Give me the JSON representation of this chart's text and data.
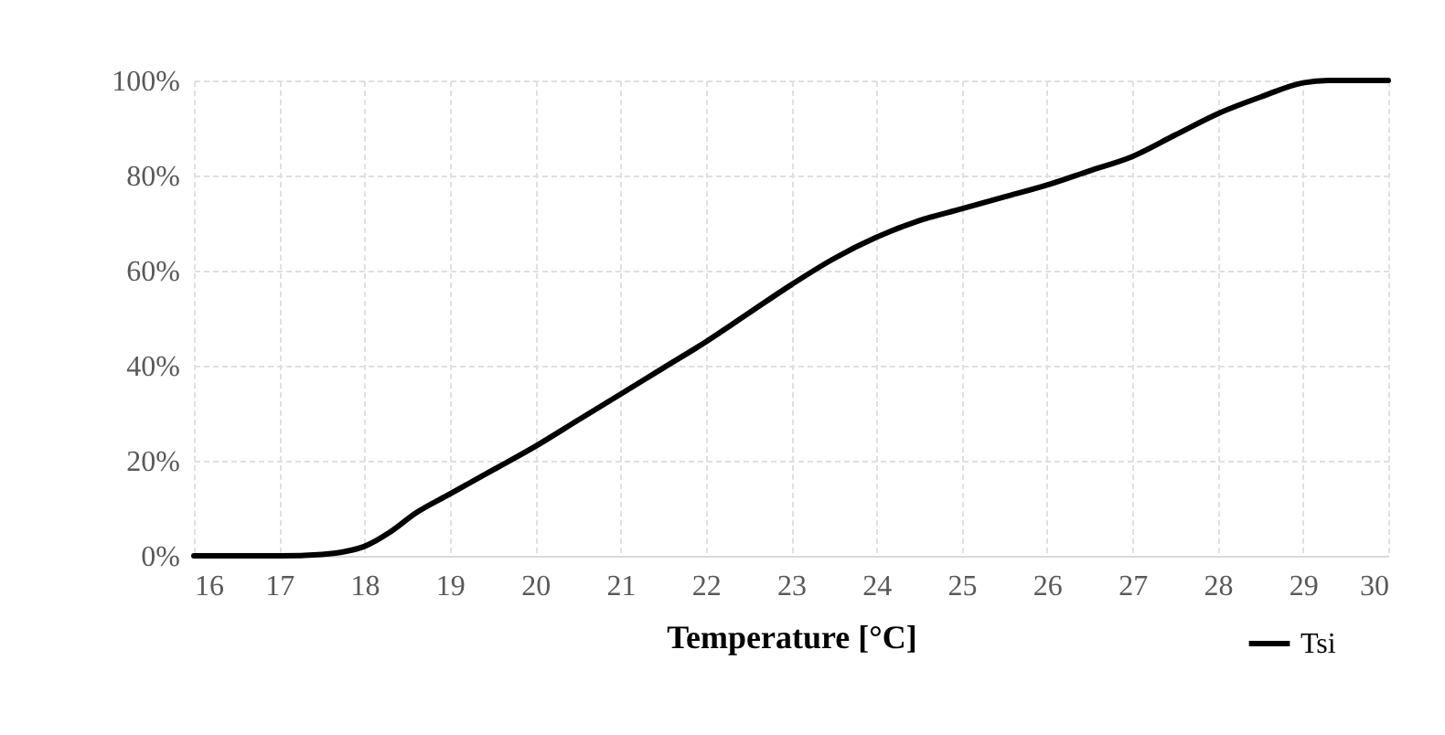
{
  "chart_data": {
    "type": "line",
    "xlabel": "Temperature [°C]",
    "xlim": [
      16,
      30
    ],
    "xticks": [
      16,
      17,
      18,
      19,
      20,
      21,
      22,
      23,
      24,
      25,
      26,
      27,
      28,
      29,
      30
    ],
    "ylim": [
      0,
      100
    ],
    "yticks": [
      {
        "value": 0,
        "label": "0%"
      },
      {
        "value": 20,
        "label": "20%"
      },
      {
        "value": 40,
        "label": "40%"
      },
      {
        "value": 60,
        "label": "60%"
      },
      {
        "value": 80,
        "label": "80%"
      },
      {
        "value": 100,
        "label": "100%"
      }
    ],
    "grid": true,
    "legend": "bottom right",
    "marker": "none",
    "line_style": "solid",
    "series": [
      {
        "name": "Tsi",
        "color": "#000000",
        "x": [
          16,
          16.5,
          17,
          17.5,
          17.8,
          18,
          18.3,
          18.6,
          19,
          19.5,
          20,
          20.5,
          21,
          21.5,
          22,
          22.5,
          23,
          23.5,
          24,
          24.5,
          25,
          25.5,
          26,
          26.5,
          27,
          27.5,
          28,
          28.5,
          29,
          29.3,
          30
        ],
        "values": [
          0,
          0,
          0,
          0.3,
          1,
          2,
          5,
          9,
          13,
          18,
          23,
          28.5,
          34,
          39.5,
          45,
          51,
          57,
          62.5,
          67,
          70.5,
          73,
          75.5,
          78,
          81,
          84,
          88.5,
          93,
          96.5,
          99.5,
          100,
          100
        ]
      }
    ]
  }
}
